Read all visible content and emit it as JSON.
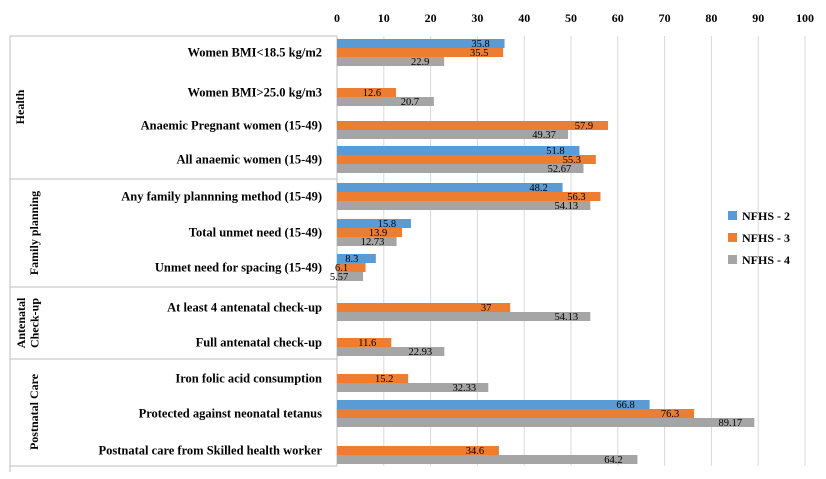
{
  "chart_data": {
    "type": "bar",
    "orientation": "horizontal",
    "xlim": [
      0,
      100
    ],
    "ticks": [
      0,
      10,
      20,
      30,
      40,
      50,
      60,
      70,
      80,
      90,
      100
    ],
    "legend_position": "right",
    "series": [
      {
        "name": "NFHS - 2",
        "color": "#5b9bd5",
        "values": [
          35.8,
          null,
          null,
          51.8,
          48.2,
          15.8,
          8.3,
          null,
          null,
          null,
          66.8,
          null
        ]
      },
      {
        "name": "NFHS - 3",
        "color": "#ed7d31",
        "values": [
          35.5,
          12.6,
          57.9,
          55.3,
          56.3,
          13.9,
          6.1,
          37,
          11.6,
          15.2,
          76.3,
          34.6
        ]
      },
      {
        "name": "NFHS - 4",
        "color": "#a5a5a5",
        "values": [
          22.9,
          20.7,
          49.37,
          52.67,
          54.13,
          12.73,
          5.57,
          54.13,
          22.93,
          32.33,
          89.17,
          64.2
        ]
      }
    ],
    "categories": [
      "Women BMI<18.5 kg/m2",
      "Women BMI>25.0 kg/m3",
      "Anaemic Pregnant women (15-49)",
      "All anaemic women (15-49)",
      "Any family plannning method (15-49)",
      "Total unmet need (15-49)",
      "Unmet need for spacing (15-49)",
      "At least 4 antenatal check-up",
      "Full antenatal check-up",
      "Iron folic acid consumption",
      "Protected against neonatal tetanus",
      "Postnatal care from Skilled health worker"
    ],
    "data_labels": [
      [
        "35.8",
        null,
        null,
        "51.8",
        "48.2",
        "15.8",
        "8.3",
        null,
        null,
        null,
        "66.8",
        null
      ],
      [
        "35.5",
        "12.6",
        "57.9",
        "55.3",
        "56.3",
        "13.9",
        "6.1",
        "37",
        "11.6",
        "15.2",
        "76.3",
        "34.6"
      ],
      [
        "22.9",
        "20.7",
        "49.37",
        "52.67",
        "54.13",
        "12.73",
        "5.57",
        "54.13",
        "22.93",
        "32.33",
        "89.17",
        "64.2"
      ]
    ],
    "groups": [
      {
        "label": "Health",
        "lines": [
          "Health"
        ],
        "start": 0,
        "end": 3
      },
      {
        "label": "Family planning",
        "lines": [
          "Family planning"
        ],
        "start": 4,
        "end": 6
      },
      {
        "label": "Antenatal Check-up",
        "lines": [
          "Antenatal",
          "Check-up"
        ],
        "start": 7,
        "end": 8
      },
      {
        "label": "Postnatal Care",
        "lines": [
          "Postnatal Care"
        ],
        "start": 9,
        "end": 11
      }
    ]
  }
}
